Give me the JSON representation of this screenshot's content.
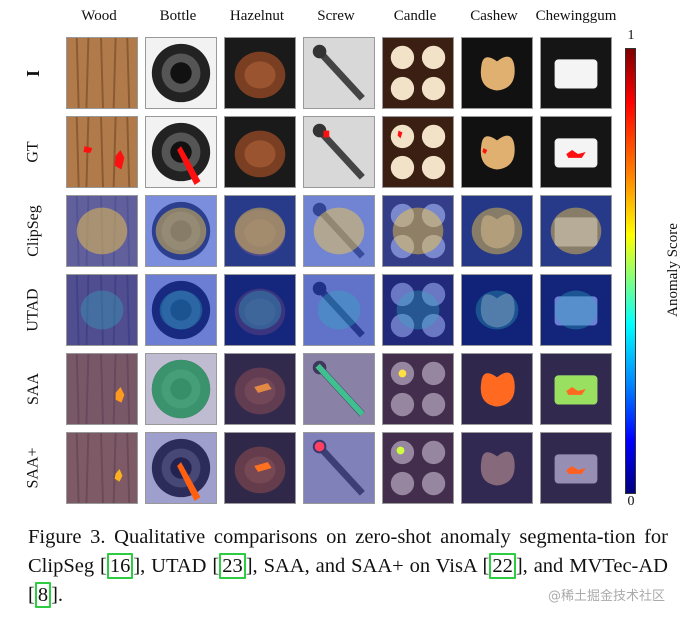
{
  "columns": [
    "Wood",
    "Bottle",
    "Hazelnut",
    "Screw",
    "Candle",
    "Cashew",
    "Chewinggum"
  ],
  "rows": [
    "I",
    "GT",
    "ClipSeg",
    "UTAD",
    "SAA",
    "SAA+"
  ],
  "colorbar": {
    "top_label": "1",
    "bottom_label": "0",
    "title": "Anomaly Score"
  },
  "caption": {
    "text1": "Figure 3. Qualitative comparisons on zero-shot anomaly segmenta-tion for ClipSeg [",
    "ref1": "16",
    "text2": "], UTAD [",
    "ref2": "23",
    "text3": "], SAA, and SAA+ on VisA [",
    "ref3": "22",
    "text4": "], and MVTec-AD [",
    "ref4": "8",
    "text5": "]."
  },
  "watermark": "@稀土掘金技术社区"
}
